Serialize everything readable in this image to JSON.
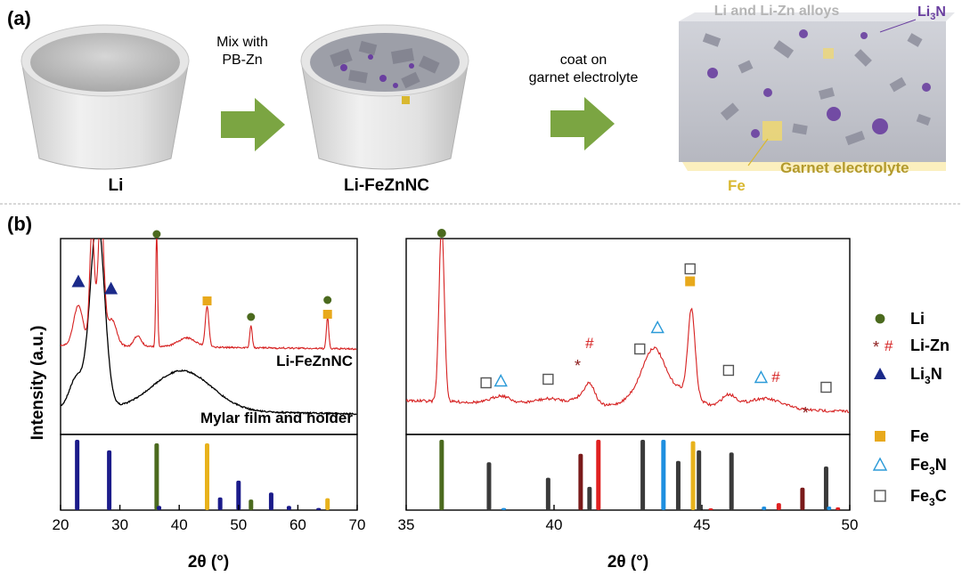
{
  "panel_a": {
    "label": "(a)",
    "li_label": "Li",
    "mix_label_1": "Mix with",
    "mix_label_2": "PB-Zn",
    "li_fezn_label": "Li-FeZnNC",
    "coat_label_1": "coat on",
    "coat_label_2": "garnet electrolyte",
    "alloys_label": "Li and Li-Zn alloys",
    "li3n_label": "Li",
    "li3n_sub": "3",
    "li3n_suffix": "N",
    "garnet_label": "Garnet electrolyte",
    "fe_label": "Fe",
    "colors": {
      "arrow": "#7ba542",
      "li3n": "#6a3fa0",
      "fe": "#d9b830",
      "garnet": "#b39a2c",
      "alloy_text": "#b5b5b5"
    }
  },
  "panel_b": {
    "label": "(b)",
    "ylabel": "Intensity (a.u.)",
    "xlabel_left": "2θ (°)",
    "xlabel_right": "2θ (°)",
    "trace_label_red": "Li-FeZnNC",
    "trace_label_black": "Mylar film and holder",
    "legend": [
      {
        "symbol": "circle",
        "color": "#4b6a1e",
        "text": "Li"
      },
      {
        "symbol": "star-hash",
        "color": "#8b1a1a",
        "star": "*",
        "hash": "#",
        "text": "Li-Zn"
      },
      {
        "symbol": "triangle-filled",
        "color": "#1b2a8a",
        "text": "Li",
        "sub": "3",
        "suffix": "N"
      },
      {
        "symbol": "square-filled",
        "color": "#e8a91c",
        "text": "Fe"
      },
      {
        "symbol": "triangle-open",
        "color": "#2a9ad8",
        "text": "Fe",
        "sub": "3",
        "suffix": "N"
      },
      {
        "symbol": "square-open",
        "color": "#555555",
        "text": "Fe",
        "sub": "3",
        "suffix": "C"
      }
    ]
  },
  "chart_data": [
    {
      "type": "line",
      "name": "XRD wide range",
      "xlim": [
        20,
        70
      ],
      "xticks": [
        "20",
        "30",
        "40",
        "50",
        "60",
        "70"
      ],
      "series": [
        {
          "name": "Li-FeZnNC",
          "color": "#d62020"
        },
        {
          "name": "Mylar film and holder",
          "color": "#000000"
        }
      ],
      "markers": [
        {
          "type": "triangle-filled",
          "x": 23,
          "color": "#1b2a8a"
        },
        {
          "type": "triangle-filled",
          "x": 28.5,
          "color": "#1b2a8a"
        },
        {
          "type": "circle",
          "x": 36.2,
          "color": "#4b6a1e"
        },
        {
          "type": "square-filled",
          "x": 44.7,
          "color": "#e8a91c"
        },
        {
          "type": "circle",
          "x": 52.1,
          "color": "#4b6a1e"
        },
        {
          "type": "circle",
          "x": 65.0,
          "color": "#4b6a1e"
        },
        {
          "type": "square-filled",
          "x": 65.0,
          "color": "#e8a91c"
        }
      ],
      "reference_sticks": [
        {
          "x": 22.8,
          "h": 1.0,
          "color": "#1b1b8a"
        },
        {
          "x": 28.2,
          "h": 0.85,
          "color": "#1b1b8a"
        },
        {
          "x": 36.2,
          "h": 0.95,
          "color": "#4b6a1e"
        },
        {
          "x": 36.6,
          "h": 0.06,
          "color": "#1b1b8a"
        },
        {
          "x": 44.7,
          "h": 0.95,
          "color": "#e8b21c"
        },
        {
          "x": 46.9,
          "h": 0.18,
          "color": "#1b1b8a"
        },
        {
          "x": 50.0,
          "h": 0.42,
          "color": "#1b1b8a"
        },
        {
          "x": 52.1,
          "h": 0.15,
          "color": "#4b6a1e"
        },
        {
          "x": 55.5,
          "h": 0.25,
          "color": "#1b1b8a"
        },
        {
          "x": 58.5,
          "h": 0.06,
          "color": "#1b1b8a"
        },
        {
          "x": 63.5,
          "h": 0.03,
          "color": "#1b1b8a"
        },
        {
          "x": 65.0,
          "h": 0.17,
          "color": "#e8b21c"
        }
      ]
    },
    {
      "type": "line",
      "name": "XRD zoom",
      "xlim": [
        35,
        50
      ],
      "xticks": [
        "35",
        "40",
        "45",
        "50"
      ],
      "series": [
        {
          "name": "Li-FeZnNC",
          "color": "#d62020"
        }
      ],
      "markers": [
        {
          "type": "circle",
          "x": 36.2,
          "color": "#4b6a1e"
        },
        {
          "type": "square-open",
          "x": 37.7,
          "color": "#555555"
        },
        {
          "type": "triangle-open",
          "x": 38.2,
          "color": "#2a9ad8"
        },
        {
          "type": "square-open",
          "x": 39.8,
          "color": "#555555"
        },
        {
          "type": "star",
          "x": 40.8,
          "color": "#8b1a1a"
        },
        {
          "type": "hash",
          "x": 41.2,
          "color": "#d62020"
        },
        {
          "type": "square-open",
          "x": 42.9,
          "color": "#555555"
        },
        {
          "type": "triangle-open",
          "x": 43.5,
          "color": "#2a9ad8"
        },
        {
          "type": "square-filled",
          "x": 44.6,
          "color": "#e8a91c"
        },
        {
          "type": "square-open",
          "x": 44.6,
          "color": "#555555"
        },
        {
          "type": "square-open",
          "x": 45.9,
          "color": "#555555"
        },
        {
          "type": "triangle-open",
          "x": 47.0,
          "color": "#2a9ad8"
        },
        {
          "type": "hash",
          "x": 47.5,
          "color": "#d62020"
        },
        {
          "type": "star",
          "x": 48.5,
          "color": "#8b1a1a"
        },
        {
          "type": "square-open",
          "x": 49.2,
          "color": "#555555"
        }
      ],
      "reference_sticks": [
        {
          "x": 36.2,
          "h": 1.0,
          "color": "#4b6a1e"
        },
        {
          "x": 37.8,
          "h": 0.68,
          "color": "#3a3a3a"
        },
        {
          "x": 38.3,
          "h": 0.03,
          "color": "#1e8fe0"
        },
        {
          "x": 39.8,
          "h": 0.46,
          "color": "#3a3a3a"
        },
        {
          "x": 40.9,
          "h": 0.8,
          "color": "#7a1a1a"
        },
        {
          "x": 41.2,
          "h": 0.33,
          "color": "#3a3a3a"
        },
        {
          "x": 41.5,
          "h": 1.0,
          "color": "#e02020"
        },
        {
          "x": 43.0,
          "h": 1.0,
          "color": "#3a3a3a"
        },
        {
          "x": 43.7,
          "h": 1.0,
          "color": "#1e8fe0"
        },
        {
          "x": 44.2,
          "h": 0.7,
          "color": "#3a3a3a"
        },
        {
          "x": 44.7,
          "h": 0.98,
          "color": "#e8b21c"
        },
        {
          "x": 44.9,
          "h": 0.85,
          "color": "#3a3a3a"
        },
        {
          "x": 45.3,
          "h": 0.02,
          "color": "#e02020"
        },
        {
          "x": 46.0,
          "h": 0.82,
          "color": "#3a3a3a"
        },
        {
          "x": 47.1,
          "h": 0.05,
          "color": "#1e8fe0"
        },
        {
          "x": 47.6,
          "h": 0.1,
          "color": "#e02020"
        },
        {
          "x": 48.4,
          "h": 0.32,
          "color": "#7a1a1a"
        },
        {
          "x": 49.2,
          "h": 0.62,
          "color": "#3a3a3a"
        },
        {
          "x": 49.3,
          "h": 0.05,
          "color": "#1e8fe0"
        },
        {
          "x": 49.6,
          "h": 0.04,
          "color": "#e02020"
        }
      ]
    }
  ]
}
